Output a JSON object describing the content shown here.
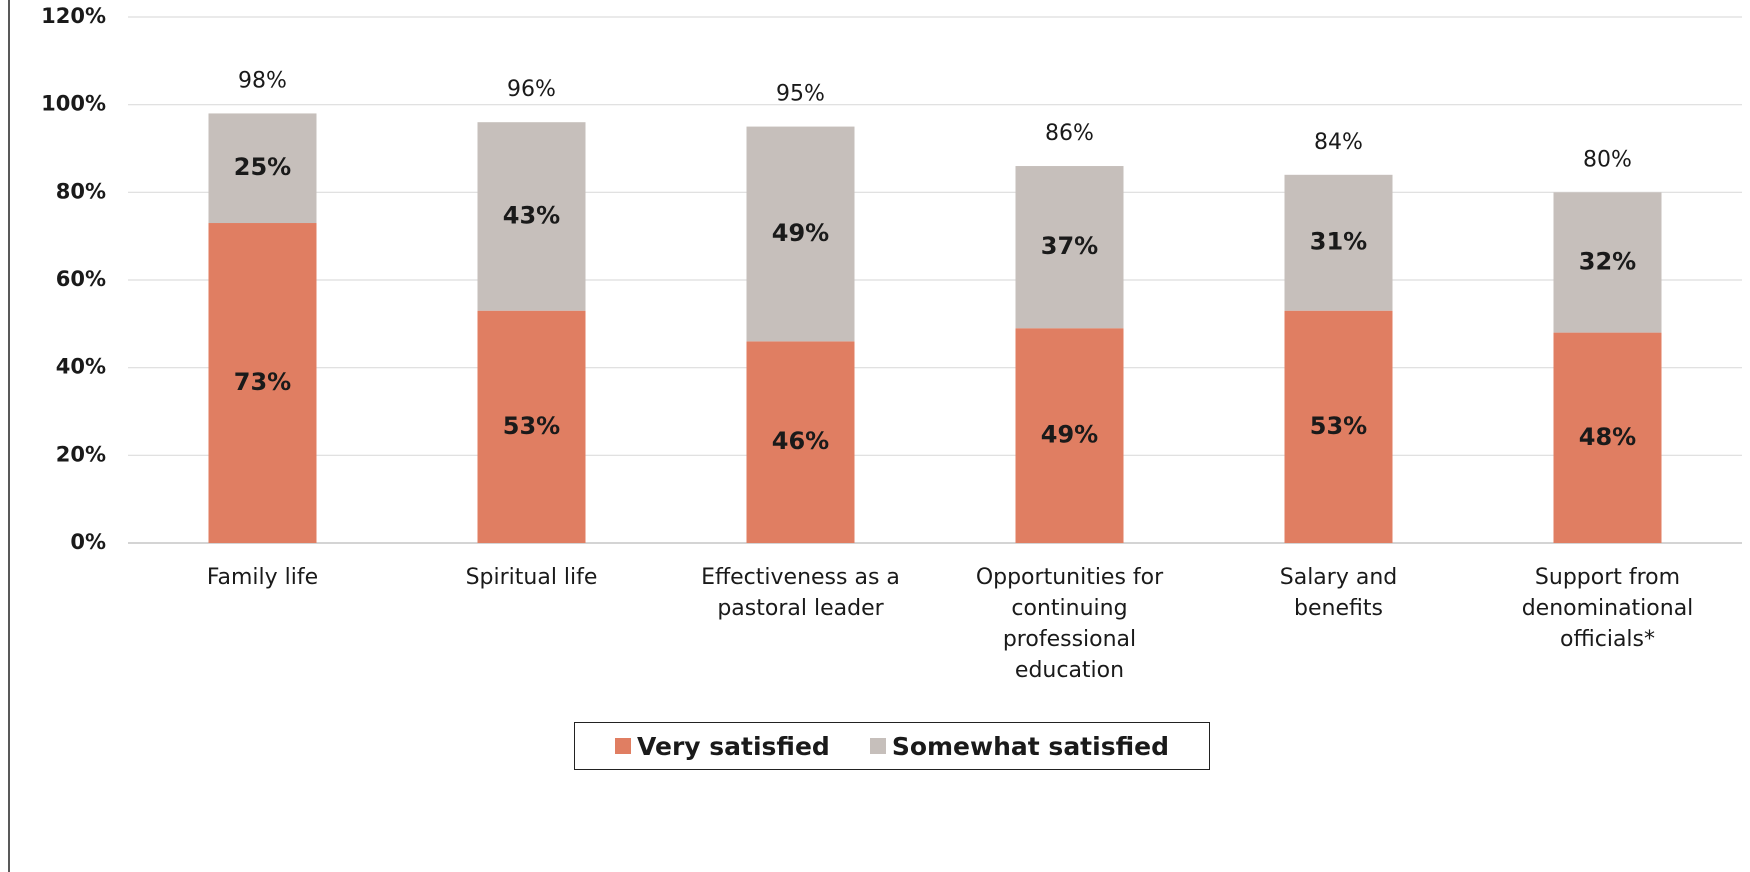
{
  "chart_data": {
    "type": "bar",
    "stacked": true,
    "categories": [
      "Family life",
      "Spiritual life",
      "Effectiveness as a pastoral leader",
      "Opportunities for continuing professional education",
      "Salary and benefits",
      "Support from denominational officials*"
    ],
    "series": [
      {
        "name": "Very satisfied",
        "color": "#e07e62",
        "values": [
          73,
          53,
          46,
          49,
          53,
          48
        ],
        "value_labels": [
          "73%",
          "53%",
          "46%",
          "49%",
          "53%",
          "48%"
        ]
      },
      {
        "name": "Somewhat satisfied",
        "color": "#c6bfbb",
        "values": [
          25,
          43,
          49,
          37,
          31,
          32
        ],
        "value_labels": [
          "25%",
          "43%",
          "49%",
          "37%",
          "31%",
          "32%"
        ]
      }
    ],
    "totals": [
      98,
      96,
      95,
      86,
      84,
      80
    ],
    "total_labels": [
      "98%",
      "96%",
      "95%",
      "86%",
      "84%",
      "80%"
    ],
    "ylim": [
      0,
      120
    ],
    "yticks": [
      {
        "value": 0,
        "label": "0%"
      },
      {
        "value": 20,
        "label": "20%"
      },
      {
        "value": 40,
        "label": "40%"
      },
      {
        "value": 60,
        "label": "60%"
      },
      {
        "value": 80,
        "label": "80%"
      },
      {
        "value": 100,
        "label": "100%"
      },
      {
        "value": 120,
        "label": "120%"
      }
    ],
    "grid": true
  }
}
